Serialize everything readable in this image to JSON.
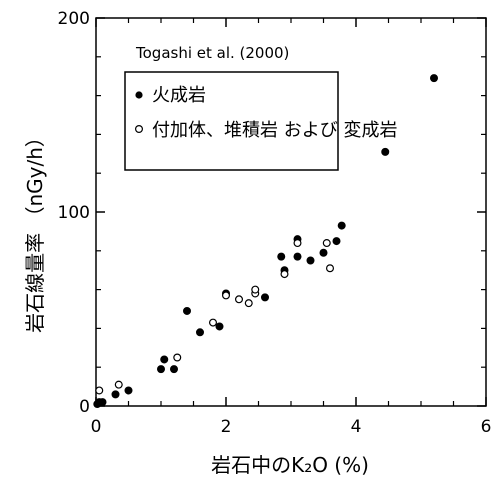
{
  "chart_data": {
    "type": "scatter",
    "title": "",
    "xlabel": "岩石中のK₂O (%)",
    "ylabel": "岩石線量率 （nGy/h）",
    "xlim": [
      0,
      6
    ],
    "ylim": [
      0,
      200
    ],
    "x_ticks": [
      0,
      2,
      4,
      6
    ],
    "y_ticks": [
      0,
      100,
      200
    ],
    "x_tick_labels": [
      "0",
      "2",
      "4",
      "6"
    ],
    "y_tick_labels": [
      "0",
      "100",
      "200"
    ],
    "grid": false,
    "legend_position": "top-left",
    "annotation": "Togashi et al. (2000)",
    "series": [
      {
        "name": "火成岩",
        "marker": "filled-circle",
        "color": "#000000",
        "points": [
          [
            0.02,
            1
          ],
          [
            0.05,
            2
          ],
          [
            0.1,
            2
          ],
          [
            0.3,
            6
          ],
          [
            0.5,
            8
          ],
          [
            1.0,
            19
          ],
          [
            1.05,
            24
          ],
          [
            1.2,
            19
          ],
          [
            1.4,
            49
          ],
          [
            1.6,
            38
          ],
          [
            1.9,
            41
          ],
          [
            2.0,
            58
          ],
          [
            2.6,
            56
          ],
          [
            2.85,
            77
          ],
          [
            2.9,
            70
          ],
          [
            3.1,
            86
          ],
          [
            3.1,
            77
          ],
          [
            3.3,
            75
          ],
          [
            3.5,
            79
          ],
          [
            3.7,
            85
          ],
          [
            3.78,
            93
          ],
          [
            4.45,
            131
          ],
          [
            5.2,
            169
          ]
        ]
      },
      {
        "name": "付加体、堆積岩 および 変成岩",
        "marker": "open-circle",
        "color": "#000000",
        "points": [
          [
            0.05,
            8
          ],
          [
            0.35,
            11
          ],
          [
            1.25,
            25
          ],
          [
            1.8,
            43
          ],
          [
            2.0,
            57
          ],
          [
            2.2,
            55
          ],
          [
            2.35,
            53
          ],
          [
            2.45,
            58
          ],
          [
            2.45,
            60
          ],
          [
            2.9,
            68
          ],
          [
            3.1,
            84
          ],
          [
            3.55,
            84
          ],
          [
            3.6,
            71
          ]
        ]
      }
    ]
  }
}
